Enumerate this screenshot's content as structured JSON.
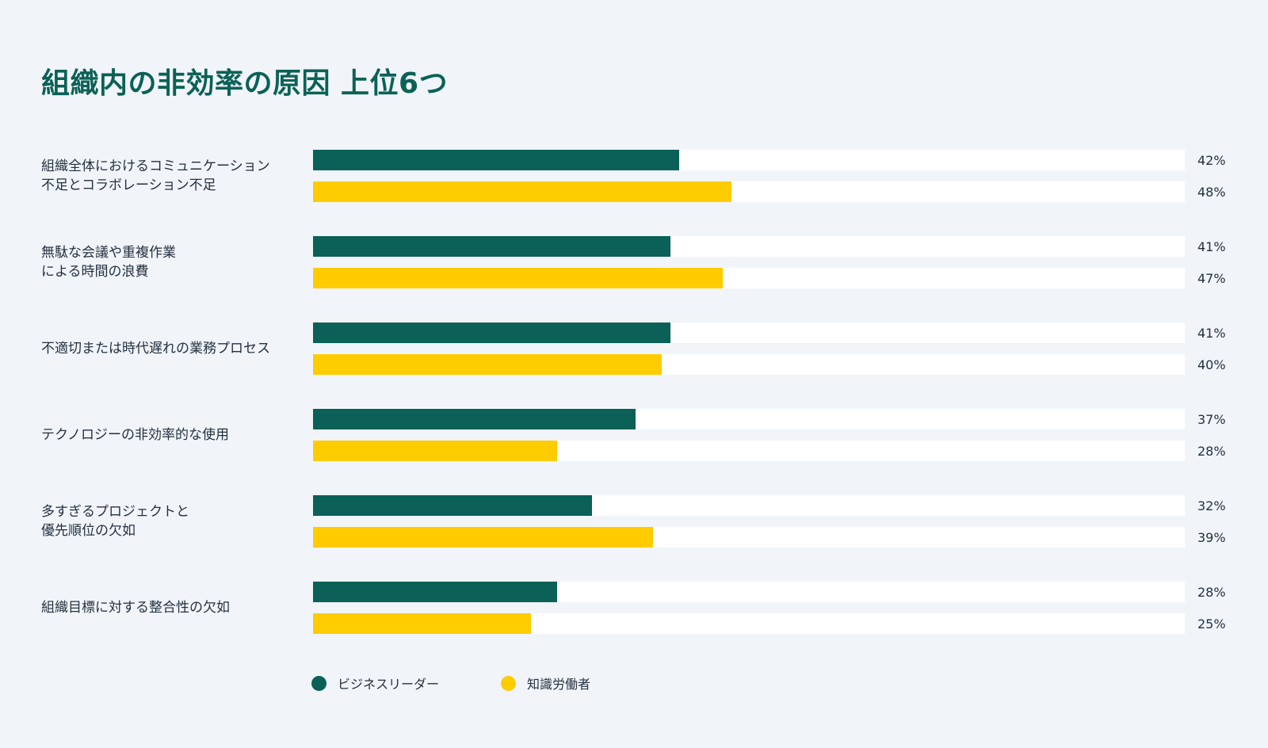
{
  "title": "組織内の非効率の原因 上位6つ",
  "chart_data": {
    "type": "bar",
    "orientation": "horizontal",
    "categories": [
      "組織全体におけるコミュニケーション\n不足とコラボレーション不足",
      "無駄な会議や重複作業\nによる時間の浪費",
      "不適切または時代遅れの業務プロセス",
      "テクノロジーの非効率的な使用",
      "多すぎるプロジェクトと\n優先順位の欠如",
      "組織目標に対する整合性の欠如"
    ],
    "series": [
      {
        "name": "ビジネスリーダー",
        "color": "#0b6157",
        "values": [
          42,
          41,
          41,
          37,
          32,
          28
        ],
        "labels": [
          "42%",
          "41%",
          "41%",
          "37%",
          "32%",
          "28%"
        ]
      },
      {
        "name": "知識労働者",
        "color": "#ffcc00",
        "values": [
          48,
          47,
          40,
          28,
          39,
          25
        ],
        "labels": [
          "48%",
          "47%",
          "40%",
          "28%",
          "39%",
          "25%"
        ]
      }
    ],
    "xlim": [
      0,
      100
    ],
    "grid": false,
    "legend_position": "bottom-left",
    "track_color": "#ffffff"
  }
}
